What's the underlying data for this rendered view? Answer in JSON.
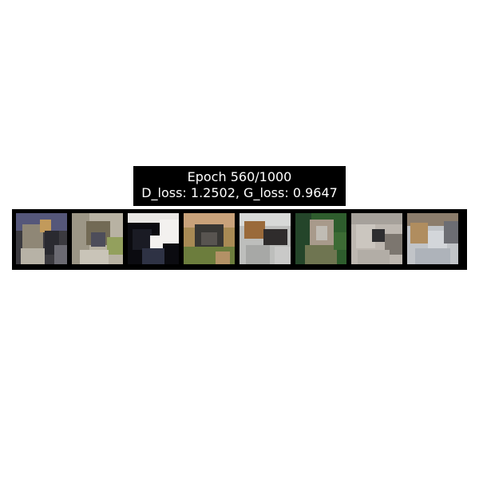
{
  "title": {
    "epoch_line": "Epoch 560/1000",
    "loss_line": "D_loss: 1.2502, G_loss: 0.9647"
  },
  "samples": [
    {
      "id": "sample-1",
      "dominant_colors": [
        "#3b3a3f",
        "#8f8776",
        "#5d5f8b",
        "#c29a5b"
      ]
    },
    {
      "id": "sample-2",
      "dominant_colors": [
        "#b8b2a3",
        "#726a55",
        "#93a05d",
        "#4d4d5a"
      ]
    },
    {
      "id": "sample-3",
      "dominant_colors": [
        "#0b0b10",
        "#f3f1ef",
        "#2e3244",
        "#9a8f83"
      ]
    },
    {
      "id": "sample-4",
      "dominant_colors": [
        "#a88a54",
        "#383734",
        "#6c7d3d",
        "#c9a27a"
      ]
    },
    {
      "id": "sample-5",
      "dominant_colors": [
        "#bdbebc",
        "#2f2c2c",
        "#9a6a3a",
        "#d7d9d7"
      ]
    },
    {
      "id": "sample-6",
      "dominant_colors": [
        "#2e5d2d",
        "#a89a8b",
        "#6f7551",
        "#c0bcb4"
      ]
    },
    {
      "id": "sample-7",
      "dominant_colors": [
        "#bdb7b0",
        "#7c766f",
        "#2e2e30",
        "#a6a19b"
      ]
    },
    {
      "id": "sample-8",
      "dominant_colors": [
        "#c1c4c8",
        "#8c7d6c",
        "#b08d5f",
        "#6c6d73"
      ]
    }
  ]
}
